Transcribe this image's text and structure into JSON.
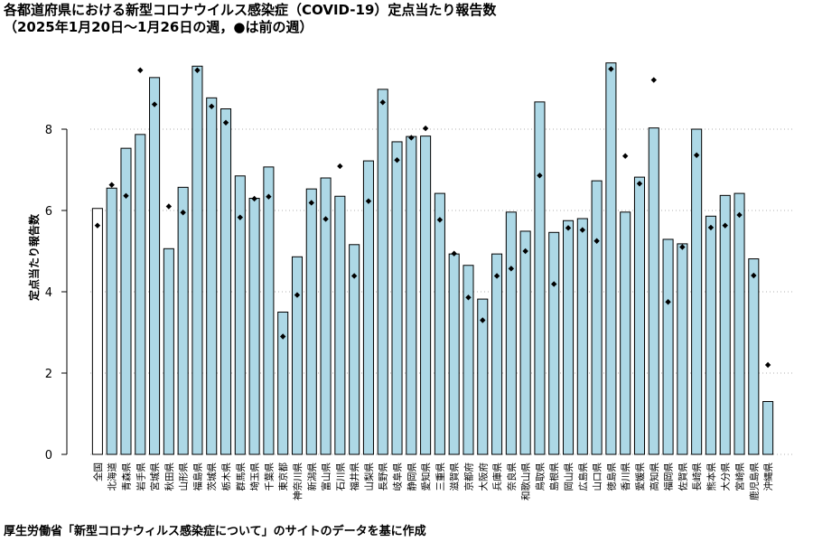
{
  "title_line1": "各都道府県における新型コロナウイルス感染症（COVID-19）定点当たり報告数",
  "title_line2": "（2025年1月20日〜1月26日の週，●は前の週）",
  "footer": "厚生労働省「新型コロナウィルス感染症について」のサイトのデータを基に作成",
  "colors": {
    "bar": "#add8e6",
    "bar_national": "#ffffff",
    "stroke": "#000000",
    "grid": "#b0b0b0"
  },
  "chart_data": {
    "type": "bar",
    "ylabel": "定点当たり報告数",
    "xlabel": "",
    "ylim": [
      0,
      10
    ],
    "yticks": [
      0,
      2,
      4,
      6,
      8
    ],
    "grid": "horizontal dotted",
    "categories": [
      "全国",
      "北海道",
      "青森県",
      "岩手県",
      "宮城県",
      "秋田県",
      "山形県",
      "福島県",
      "茨城県",
      "栃木県",
      "群馬県",
      "埼玉県",
      "千葉県",
      "東京都",
      "神奈川県",
      "新潟県",
      "富山県",
      "石川県",
      "福井県",
      "山梨県",
      "長野県",
      "岐阜県",
      "静岡県",
      "愛知県",
      "三重県",
      "滋賀県",
      "京都府",
      "大阪府",
      "兵庫県",
      "奈良県",
      "和歌山県",
      "鳥取県",
      "島根県",
      "岡山県",
      "広島県",
      "山口県",
      "徳島県",
      "香川県",
      "愛媛県",
      "高知県",
      "福岡県",
      "佐賀県",
      "長崎県",
      "熊本県",
      "大分県",
      "宮崎県",
      "鹿児島県",
      "沖縄県"
    ],
    "series": [
      {
        "name": "2025年1月20日〜1月26日の週",
        "values": [
          6.05,
          6.55,
          7.53,
          7.87,
          9.27,
          5.06,
          6.57,
          9.55,
          8.77,
          8.5,
          6.85,
          6.3,
          7.07,
          3.5,
          4.86,
          6.53,
          6.8,
          6.35,
          5.16,
          7.22,
          8.98,
          7.69,
          7.82,
          7.83,
          6.42,
          4.93,
          4.65,
          3.82,
          4.93,
          5.96,
          5.49,
          8.67,
          5.46,
          5.75,
          5.8,
          6.73,
          9.63,
          5.96,
          6.82,
          8.03,
          5.29,
          5.18,
          8.0,
          5.86,
          6.37,
          6.42,
          4.81,
          1.3
        ]
      },
      {
        "name": "前の週",
        "values": [
          5.63,
          6.63,
          6.36,
          9.45,
          8.61,
          6.1,
          5.95,
          9.45,
          8.56,
          8.16,
          5.83,
          6.29,
          6.34,
          2.9,
          3.92,
          6.19,
          5.79,
          7.09,
          4.39,
          6.23,
          8.66,
          7.24,
          7.79,
          8.02,
          5.77,
          4.94,
          3.86,
          3.3,
          4.39,
          4.57,
          5.0,
          6.86,
          4.19,
          5.57,
          5.52,
          5.25,
          9.48,
          7.34,
          6.66,
          9.21,
          3.75,
          5.1,
          7.36,
          5.58,
          5.63,
          5.89,
          4.4,
          2.2
        ]
      }
    ]
  }
}
